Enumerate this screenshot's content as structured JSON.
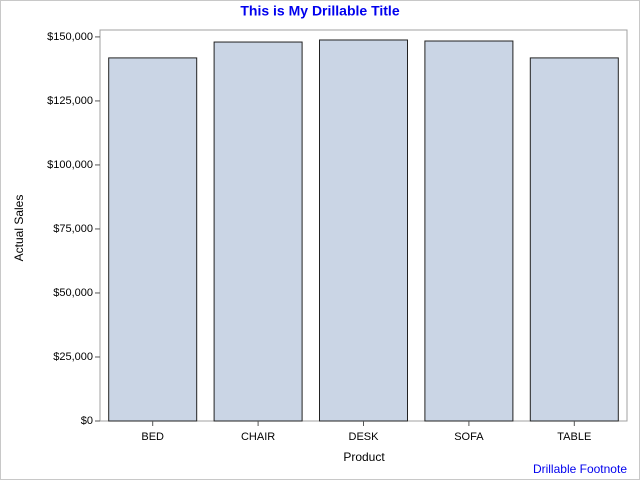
{
  "chart_data": {
    "type": "bar",
    "title": "This is My Drillable Title",
    "footnote": "Drillable Footnote",
    "x_label": "Product",
    "y_label": "Actual Sales",
    "categories": [
      "BED",
      "CHAIR",
      "DESK",
      "SOFA",
      "TABLE"
    ],
    "values": [
      141800,
      148000,
      148800,
      148400,
      141800
    ],
    "color": "#cad5e5",
    "edge_color": "#222222",
    "ylim": [
      0,
      152700
    ],
    "yticks": [
      {
        "value": 0,
        "label": "$0"
      },
      {
        "value": 25000,
        "label": "$25,000"
      },
      {
        "value": 50000,
        "label": "$50,000"
      },
      {
        "value": 75000,
        "label": "$75,000"
      },
      {
        "value": 100000,
        "label": "$100,000"
      },
      {
        "value": 125000,
        "label": "$125,000"
      },
      {
        "value": 150000,
        "label": "$150,000"
      }
    ],
    "grid": false
  }
}
